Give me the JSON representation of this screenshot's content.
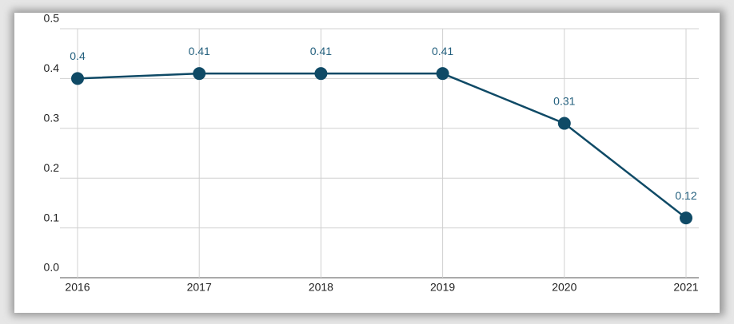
{
  "chart_data": {
    "type": "line",
    "categories": [
      "2016",
      "2017",
      "2018",
      "2019",
      "2020",
      "2021"
    ],
    "values": [
      0.4,
      0.41,
      0.41,
      0.41,
      0.31,
      0.12
    ],
    "color": "#0f4a66",
    "ylim": [
      0,
      0.5
    ],
    "yticks": [
      {
        "value": 0,
        "label": "0.0"
      },
      0.1,
      0.2,
      0.3,
      0.4,
      0.5
    ],
    "grid": true
  }
}
